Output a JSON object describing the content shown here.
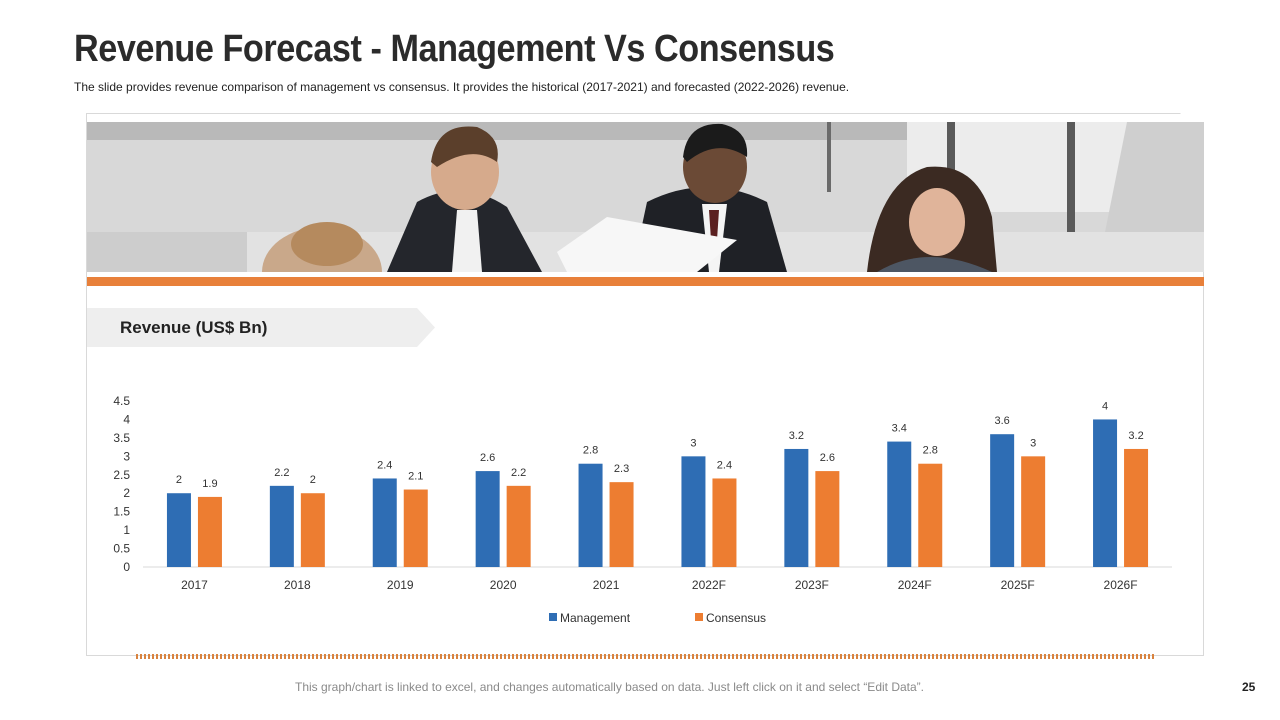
{
  "slide": {
    "title": "Revenue Forecast - Management Vs Consensus",
    "subtitle": "The slide provides revenue comparison of management vs consensus. It provides the historical (2017-2021) and forecasted (2022-2026) revenue.",
    "section_label": "Revenue (US$ Bn)",
    "footer_note": "This graph/chart is linked to excel, and changes automatically based on data. Just left click on it and select “Edit Data”.",
    "page_number": "25"
  },
  "colors": {
    "accent": "#e8803a",
    "management": "#2e6db4",
    "consensus": "#ed7d31"
  },
  "chart_data": {
    "type": "bar",
    "title": "Revenue (US$ Bn)",
    "xlabel": "",
    "ylabel": "",
    "ylim": [
      0,
      4.5
    ],
    "yticks": [
      "0",
      "0.5",
      "1",
      "1.5",
      "2",
      "2.5",
      "3",
      "3.5",
      "4",
      "4.5"
    ],
    "categories": [
      "2017",
      "2018",
      "2019",
      "2020",
      "2021",
      "2022F",
      "2023F",
      "2024F",
      "2025F",
      "2026F"
    ],
    "series": [
      {
        "name": "Management",
        "values": [
          2,
          2.2,
          2.4,
          2.6,
          2.8,
          3,
          3.2,
          3.4,
          3.6,
          4
        ]
      },
      {
        "name": "Consensus",
        "values": [
          1.9,
          2,
          2.1,
          2.2,
          2.3,
          2.4,
          2.6,
          2.8,
          3,
          3.2
        ]
      }
    ],
    "legend": "bottom",
    "grid": false
  }
}
